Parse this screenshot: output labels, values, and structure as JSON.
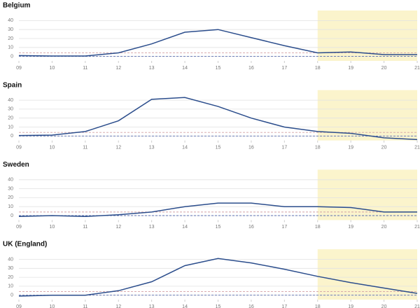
{
  "chart_data": [
    {
      "type": "line",
      "title": "Belgium",
      "x": [
        9,
        10,
        11,
        12,
        13,
        14,
        15,
        16,
        17,
        18,
        19,
        20,
        21
      ],
      "series": [
        {
          "color": "#2b4d8c",
          "values": [
            1,
            0.5,
            0.5,
            4,
            14,
            27,
            30,
            21,
            12,
            4,
            5,
            2,
            2
          ]
        }
      ],
      "xlim": [
        9,
        21
      ],
      "ylim": [
        -5,
        45
      ],
      "xticks": [
        {
          "value": 9,
          "label": "09"
        },
        10,
        11,
        12,
        13,
        14,
        15,
        16,
        17,
        18,
        19,
        20,
        21
      ],
      "yticks": [
        0,
        10,
        20,
        30,
        40
      ],
      "grid": true,
      "shaded_xrange": [
        18,
        21
      ],
      "shade_color": "#fbf4cc",
      "reference_lines": [
        {
          "value": 4,
          "color": "#d4a0a4"
        },
        {
          "value": 0,
          "color": "#5b6fb0"
        }
      ]
    },
    {
      "type": "line",
      "title": "Spain",
      "x": [
        9,
        10,
        11,
        12,
        13,
        14,
        15,
        16,
        17,
        18,
        19,
        20,
        21
      ],
      "series": [
        {
          "color": "#2b4d8c",
          "values": [
            0.5,
            1,
            5,
            17,
            41,
            43,
            33,
            20,
            10,
            5,
            3,
            -2,
            -4
          ]
        }
      ],
      "xlim": [
        9,
        21
      ],
      "ylim": [
        -5,
        45
      ],
      "xticks": [
        {
          "value": 9,
          "label": "09"
        },
        10,
        11,
        12,
        13,
        14,
        15,
        16,
        17,
        18,
        19,
        20,
        21
      ],
      "yticks": [
        0,
        10,
        20,
        30,
        40
      ],
      "grid": true,
      "shaded_xrange": [
        18,
        21
      ],
      "shade_color": "#fbf4cc",
      "reference_lines": [
        {
          "value": 4,
          "color": "#d4a0a4"
        },
        {
          "value": 0,
          "color": "#5b6fb0"
        }
      ]
    },
    {
      "type": "line",
      "title": "Sweden",
      "x": [
        9,
        10,
        11,
        12,
        13,
        14,
        15,
        16,
        17,
        18,
        19,
        20,
        21
      ],
      "series": [
        {
          "color": "#2b4d8c",
          "values": [
            -1,
            0,
            -1,
            1,
            4,
            10,
            14,
            14,
            10,
            10,
            9,
            4,
            4
          ]
        }
      ],
      "xlim": [
        9,
        21
      ],
      "ylim": [
        -5,
        45
      ],
      "xticks": [
        {
          "value": 9,
          "label": "09"
        },
        10,
        11,
        12,
        13,
        14,
        15,
        16,
        17,
        18,
        19,
        20,
        21
      ],
      "yticks": [
        0,
        10,
        20,
        30,
        40
      ],
      "grid": true,
      "shaded_xrange": [
        18,
        21
      ],
      "shade_color": "#fbf4cc",
      "reference_lines": [
        {
          "value": 4,
          "color": "#d4a0a4"
        },
        {
          "value": 0,
          "color": "#5b6fb0"
        }
      ]
    },
    {
      "type": "line",
      "title": "UK (England)",
      "x": [
        9,
        10,
        11,
        12,
        13,
        14,
        15,
        16,
        17,
        18,
        19,
        20,
        21
      ],
      "series": [
        {
          "color": "#2b4d8c",
          "values": [
            -1,
            0,
            0,
            5,
            15,
            33,
            41,
            36,
            29,
            21,
            14,
            8,
            2
          ]
        }
      ],
      "xlim": [
        9,
        21
      ],
      "ylim": [
        -5,
        45
      ],
      "xticks": [
        {
          "value": 9,
          "label": "09"
        },
        10,
        11,
        12,
        13,
        14,
        15,
        16,
        17,
        18,
        19,
        20,
        21
      ],
      "yticks": [
        0,
        10,
        20,
        30,
        40
      ],
      "grid": true,
      "shaded_xrange": [
        18,
        21
      ],
      "shade_color": "#fbf4cc",
      "reference_lines": [
        {
          "value": 4,
          "color": "#d4a0a4"
        },
        {
          "value": 0,
          "color": "#5b6fb0"
        }
      ]
    }
  ]
}
